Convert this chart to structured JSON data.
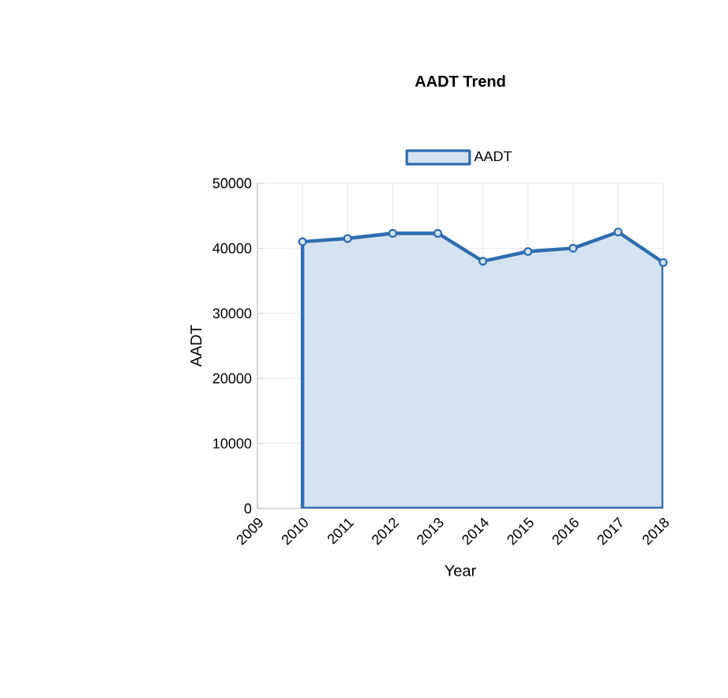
{
  "chart_data": {
    "type": "area",
    "title": "AADT Trend",
    "xlabel": "Year",
    "ylabel": "AADT",
    "categories": [
      "2009",
      "2010",
      "2011",
      "2012",
      "2013",
      "2014",
      "2015",
      "2016",
      "2017",
      "2018"
    ],
    "series": [
      {
        "name": "AADT",
        "color": "#2e6db0",
        "values": [
          null,
          41000,
          41500,
          42300,
          42300,
          38000,
          39500,
          40000,
          42500,
          37800
        ]
      }
    ],
    "ylim": [
      0,
      50000
    ],
    "yticks": [
      0,
      10000,
      20000,
      30000,
      40000,
      50000
    ],
    "grid": true,
    "legend": "top",
    "marker": "circle"
  }
}
